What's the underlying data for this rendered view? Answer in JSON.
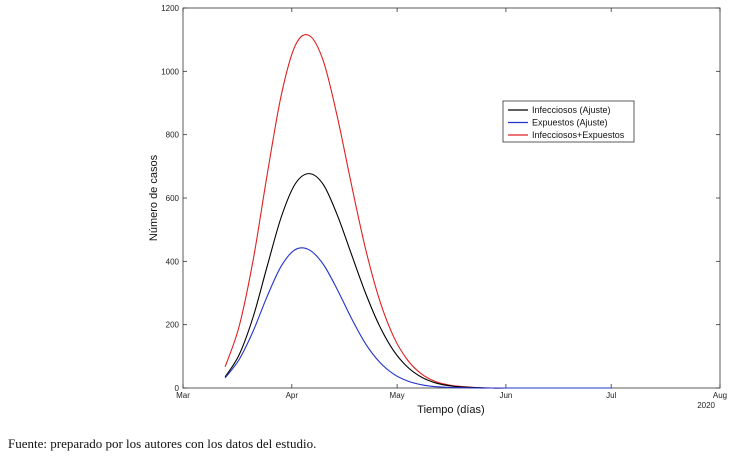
{
  "chart_data": {
    "type": "line",
    "xlabel": "Tiempo (días)",
    "ylabel": "Número de casos",
    "year_label": "2020",
    "xlim": [
      "2020-03-01",
      "2020-08-01"
    ],
    "ylim": [
      0,
      1200
    ],
    "x_ticks": [
      {
        "date": "2020-03-01",
        "label": "Mar"
      },
      {
        "date": "2020-04-01",
        "label": "Apr"
      },
      {
        "date": "2020-05-01",
        "label": "May"
      },
      {
        "date": "2020-06-01",
        "label": "Jun"
      },
      {
        "date": "2020-07-01",
        "label": "Jul"
      },
      {
        "date": "2020-08-01",
        "label": "Aug"
      }
    ],
    "y_ticks": [
      0,
      200,
      400,
      600,
      800,
      1000,
      1200
    ],
    "grid": false,
    "legend_position": "upper-right",
    "x": [
      "2020-03-13",
      "2020-03-17",
      "2020-03-21",
      "2020-03-25",
      "2020-03-29",
      "2020-04-02",
      "2020-04-06",
      "2020-04-10",
      "2020-04-14",
      "2020-04-18",
      "2020-04-22",
      "2020-04-26",
      "2020-04-30",
      "2020-05-04",
      "2020-05-08",
      "2020-05-12",
      "2020-05-16",
      "2020-05-20",
      "2020-05-24",
      "2020-05-28",
      "2020-06-01",
      "2020-06-15",
      "2020-07-01"
    ],
    "series": [
      {
        "name": "Infecciosos (Ajuste)",
        "color": "#000000",
        "values": [
          35,
          105,
          225,
          385,
          540,
          645,
          677,
          642,
          545,
          422,
          300,
          196,
          118,
          66,
          34,
          16,
          7,
          3,
          1,
          0,
          0,
          0,
          0
        ]
      },
      {
        "name": "Expuestos (Ajuste)",
        "color": "#2233cc",
        "values": [
          32,
          90,
          180,
          290,
          385,
          437,
          436,
          390,
          310,
          220,
          140,
          82,
          44,
          22,
          10,
          4,
          2,
          1,
          0,
          0,
          0,
          0,
          0
        ]
      },
      {
        "name": "Infecciosos+Expuestos",
        "color": "#e02020",
        "values": [
          67,
          195,
          405,
          675,
          925,
          1082,
          1113,
          1032,
          855,
          642,
          440,
          278,
          162,
          88,
          44,
          20,
          9,
          4,
          1,
          0,
          0,
          0,
          0
        ]
      }
    ]
  },
  "caption": "Fuente: preparado por los autores con los datos del estudio."
}
